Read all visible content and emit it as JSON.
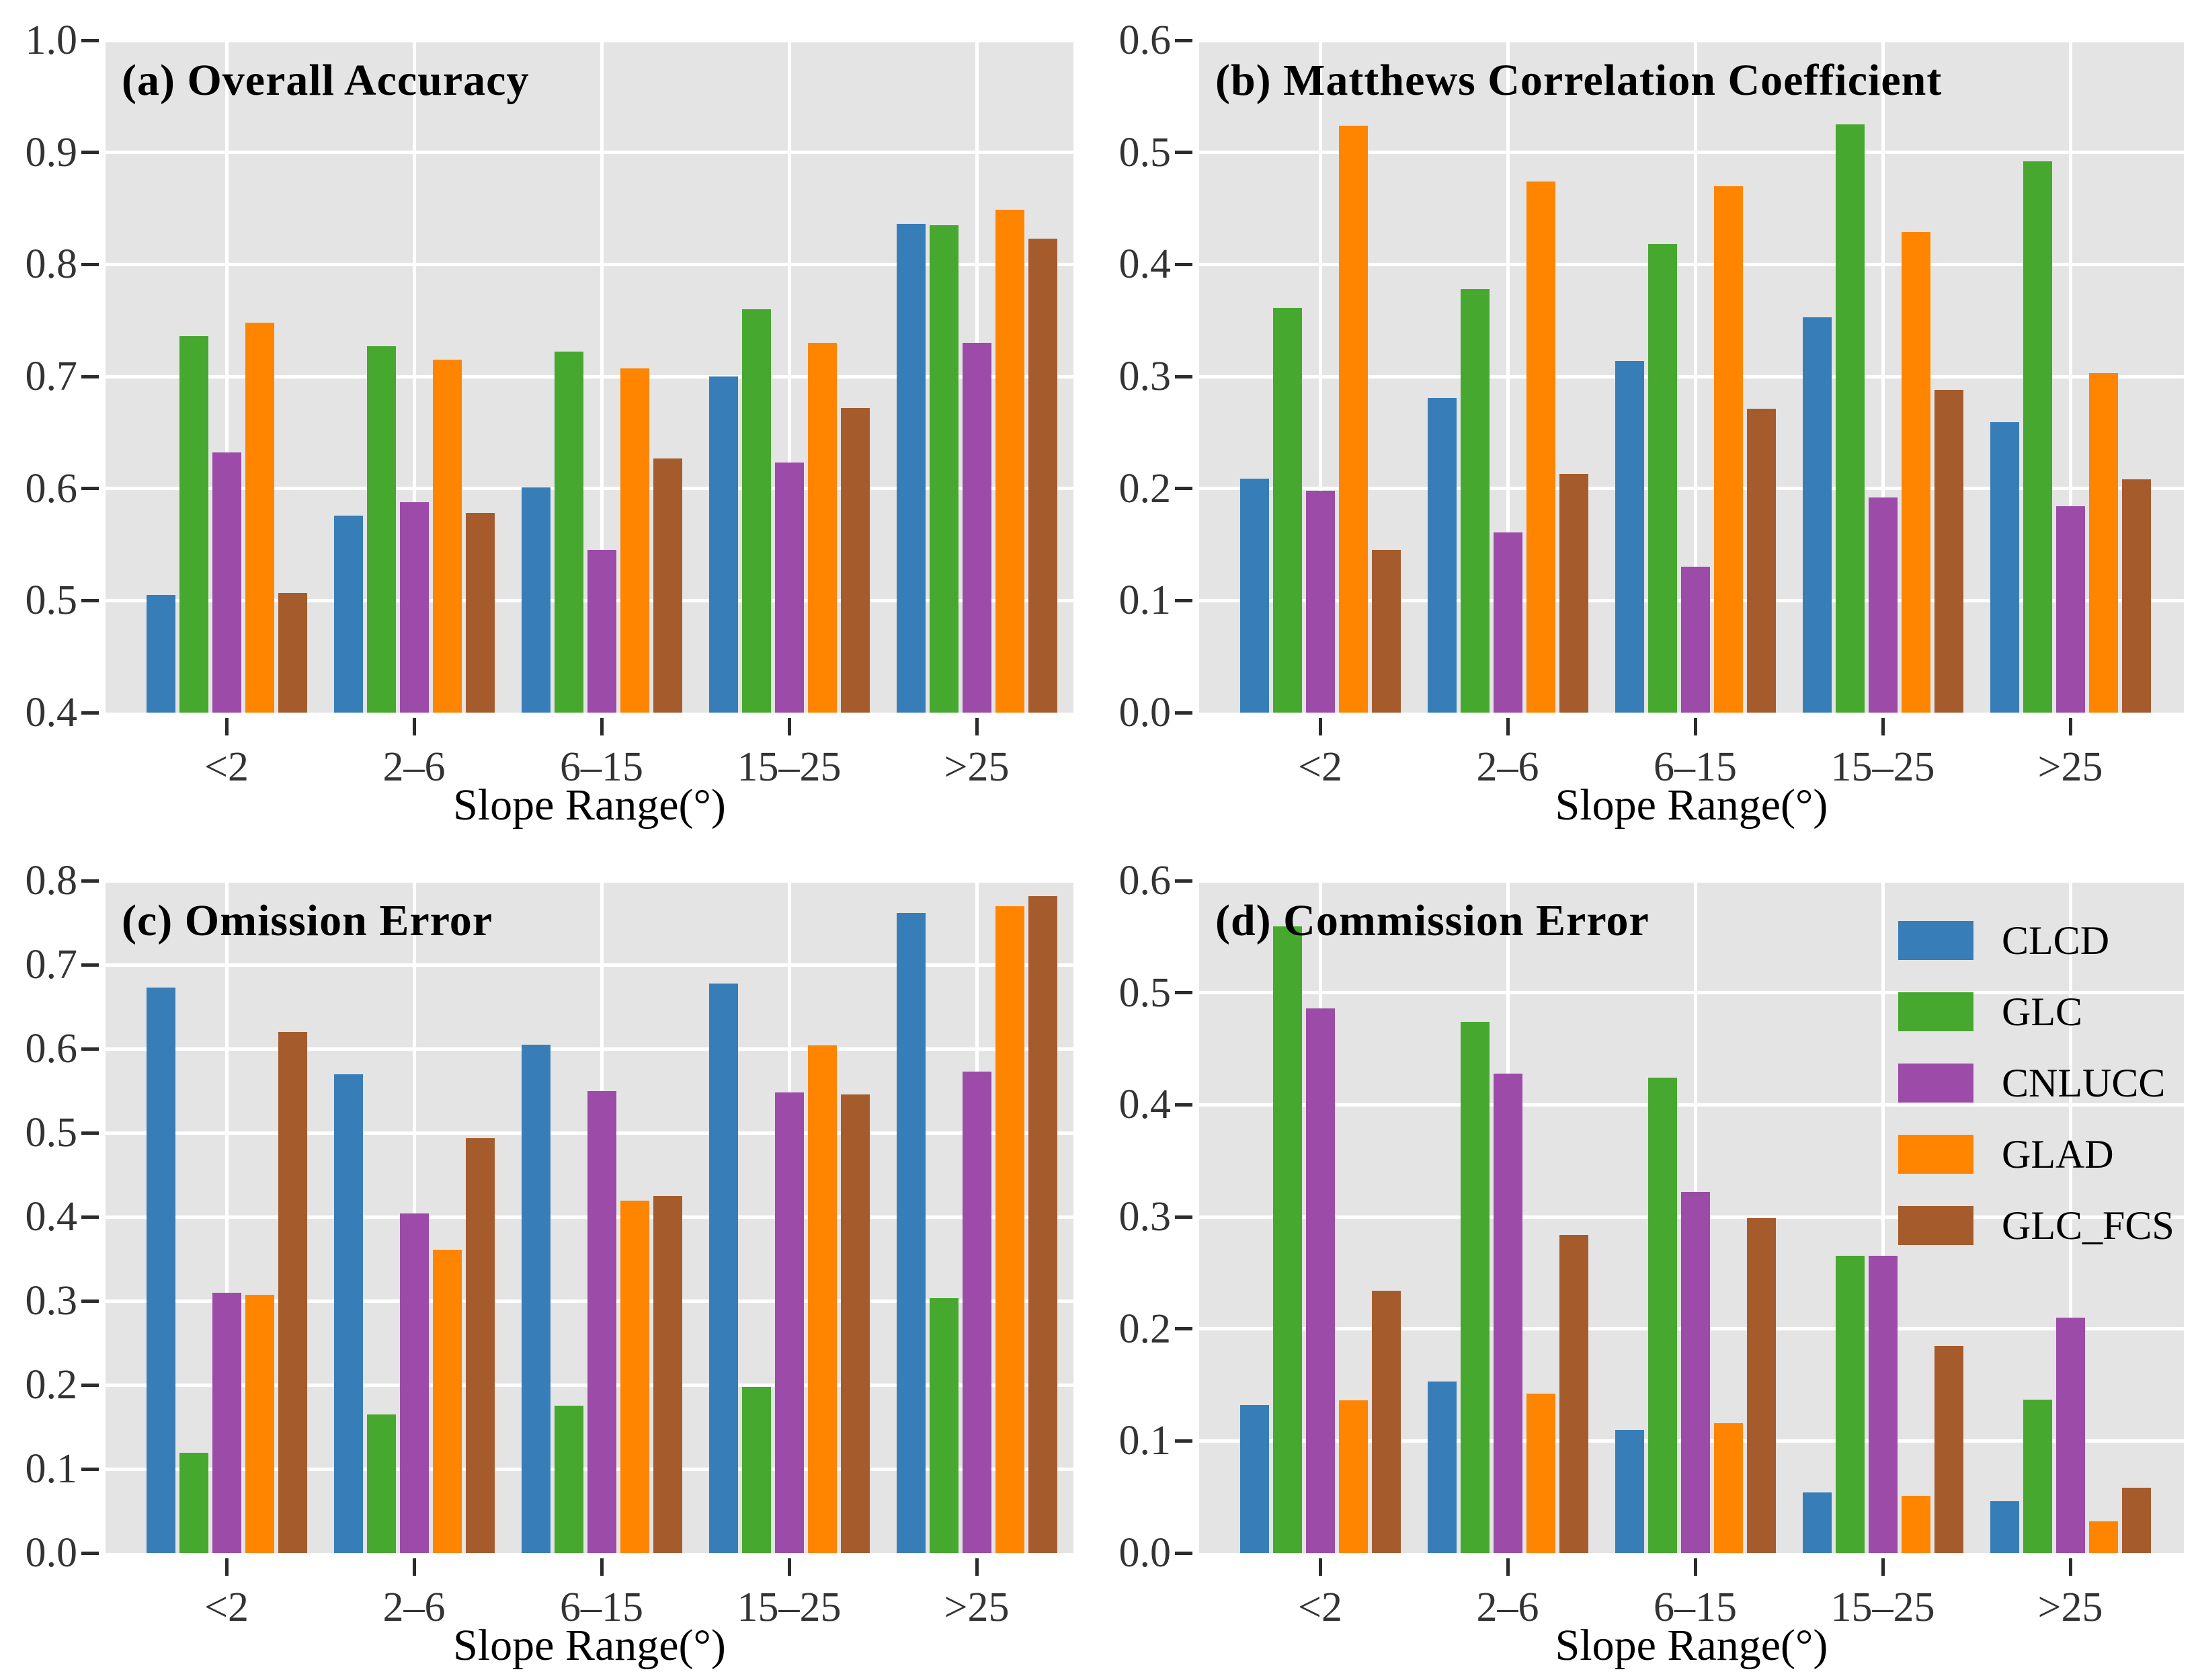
{
  "style": {
    "plot_bg": "#E4E4E4",
    "grid_color": "#FFFFFF",
    "tick_color": "#2B2B2B",
    "text_color": "#333333"
  },
  "legend": {
    "position": "top-right-of-panel-d",
    "entries": [
      {
        "label": "CLCD",
        "color": "#377EB8"
      },
      {
        "label": "GLC",
        "color": "#46A82E"
      },
      {
        "label": "CNLUCC",
        "color": "#9C4BA8"
      },
      {
        "label": "GLAD",
        "color": "#FF8400"
      },
      {
        "label": "GLC_FCS",
        "color": "#A65B2C"
      }
    ]
  },
  "chart_data": [
    {
      "id": "a",
      "type": "bar",
      "title": "(a) Overall Accuracy",
      "xlabel": "Slope Range(°)",
      "categories": [
        "<2",
        "2–6",
        "6–15",
        "15–25",
        ">25"
      ],
      "ylim": [
        0.4,
        1.0
      ],
      "yticks": [
        "0.4",
        "0.5",
        "0.6",
        "0.7",
        "0.8",
        "0.9",
        "1.0"
      ],
      "grid": true,
      "legend": false,
      "series": [
        {
          "name": "CLCD",
          "values": [
            0.505,
            0.576,
            0.601,
            0.7,
            0.836
          ]
        },
        {
          "name": "GLC",
          "values": [
            0.736,
            0.727,
            0.722,
            0.76,
            0.835
          ]
        },
        {
          "name": "CNLUCC",
          "values": [
            0.632,
            0.588,
            0.545,
            0.623,
            0.73
          ]
        },
        {
          "name": "GLAD",
          "values": [
            0.748,
            0.715,
            0.707,
            0.73,
            0.849
          ]
        },
        {
          "name": "GLC_FCS",
          "values": [
            0.507,
            0.578,
            0.627,
            0.672,
            0.823
          ]
        }
      ]
    },
    {
      "id": "b",
      "type": "bar",
      "title": "(b) Matthews Correlation Coefficient",
      "xlabel": "Slope Range(°)",
      "categories": [
        "<2",
        "2–6",
        "6–15",
        "15–25",
        ">25"
      ],
      "ylim": [
        0.0,
        0.6
      ],
      "yticks": [
        "0.0",
        "0.1",
        "0.2",
        "0.3",
        "0.4",
        "0.5",
        "0.6"
      ],
      "grid": true,
      "legend": false,
      "series": [
        {
          "name": "CLCD",
          "values": [
            0.209,
            0.281,
            0.314,
            0.353,
            0.259
          ]
        },
        {
          "name": "GLC",
          "values": [
            0.361,
            0.378,
            0.418,
            0.525,
            0.492
          ]
        },
        {
          "name": "CNLUCC",
          "values": [
            0.198,
            0.161,
            0.13,
            0.192,
            0.184
          ]
        },
        {
          "name": "GLAD",
          "values": [
            0.524,
            0.474,
            0.47,
            0.429,
            0.303
          ]
        },
        {
          "name": "GLC_FCS",
          "values": [
            0.145,
            0.213,
            0.271,
            0.288,
            0.208
          ]
        }
      ]
    },
    {
      "id": "c",
      "type": "bar",
      "title": "(c) Omission Error",
      "xlabel": "Slope Range(°)",
      "categories": [
        "<2",
        "2–6",
        "6–15",
        "15–25",
        ">25"
      ],
      "ylim": [
        0.0,
        0.8
      ],
      "yticks": [
        "0.0",
        "0.1",
        "0.2",
        "0.3",
        "0.4",
        "0.5",
        "0.6",
        "0.7",
        "0.8"
      ],
      "grid": true,
      "legend": false,
      "series": [
        {
          "name": "CLCD",
          "values": [
            0.673,
            0.57,
            0.605,
            0.678,
            0.762
          ]
        },
        {
          "name": "GLC",
          "values": [
            0.119,
            0.165,
            0.175,
            0.198,
            0.303
          ]
        },
        {
          "name": "CNLUCC",
          "values": [
            0.31,
            0.404,
            0.55,
            0.548,
            0.573
          ]
        },
        {
          "name": "GLAD",
          "values": [
            0.307,
            0.361,
            0.419,
            0.604,
            0.77
          ]
        },
        {
          "name": "GLC_FCS",
          "values": [
            0.62,
            0.494,
            0.425,
            0.546,
            0.782
          ]
        }
      ]
    },
    {
      "id": "d",
      "type": "bar",
      "title": "(d) Commission Error",
      "xlabel": "Slope Range(°)",
      "categories": [
        "<2",
        "2–6",
        "6–15",
        "15–25",
        ">25"
      ],
      "ylim": [
        0.0,
        0.6
      ],
      "yticks": [
        "0.0",
        "0.1",
        "0.2",
        "0.3",
        "0.4",
        "0.5",
        "0.6"
      ],
      "grid": true,
      "legend": true,
      "series": [
        {
          "name": "CLCD",
          "values": [
            0.132,
            0.153,
            0.11,
            0.054,
            0.046
          ]
        },
        {
          "name": "GLC",
          "values": [
            0.559,
            0.474,
            0.424,
            0.265,
            0.137
          ]
        },
        {
          "name": "CNLUCC",
          "values": [
            0.486,
            0.428,
            0.322,
            0.265,
            0.21
          ]
        },
        {
          "name": "GLAD",
          "values": [
            0.136,
            0.142,
            0.116,
            0.051,
            0.028
          ]
        },
        {
          "name": "GLC_FCS",
          "values": [
            0.234,
            0.284,
            0.299,
            0.185,
            0.058
          ]
        }
      ]
    }
  ]
}
